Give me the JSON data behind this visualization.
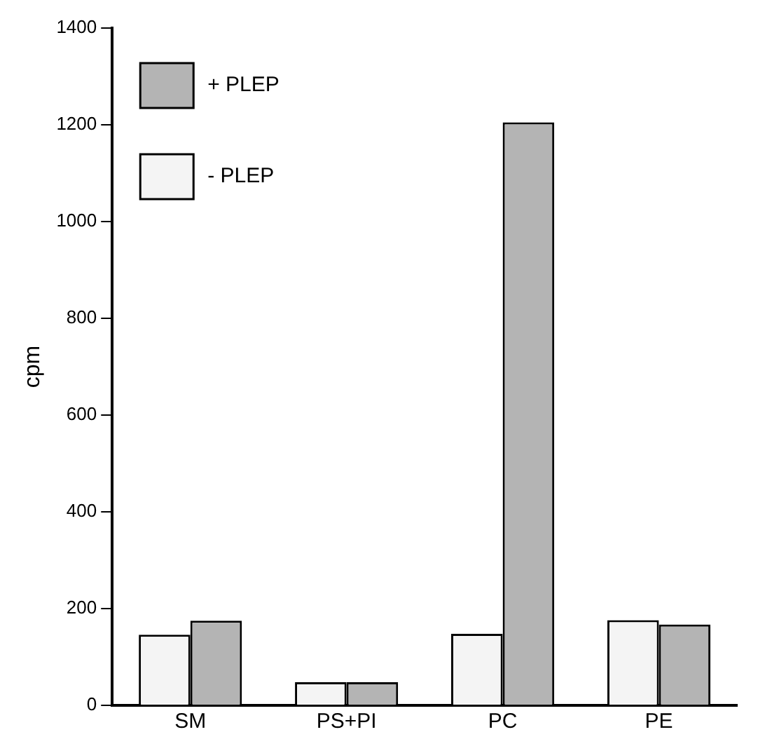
{
  "chart_data": {
    "type": "bar",
    "ylabel": "cpm",
    "categories": [
      "SM",
      "PS+PI",
      "PC",
      "PE"
    ],
    "series": [
      {
        "name": "- PLEP",
        "color": "#f4f4f4",
        "values": [
          146,
          48,
          148,
          176
        ]
      },
      {
        "name": "+ PLEP",
        "color": "#b4b4b4",
        "values": [
          175,
          48,
          1205,
          167
        ]
      }
    ],
    "ylim": [
      0,
      1400
    ],
    "yticks": [
      0,
      200,
      400,
      600,
      800,
      1000,
      1200,
      1400
    ],
    "grid": false,
    "legend": "top left"
  }
}
